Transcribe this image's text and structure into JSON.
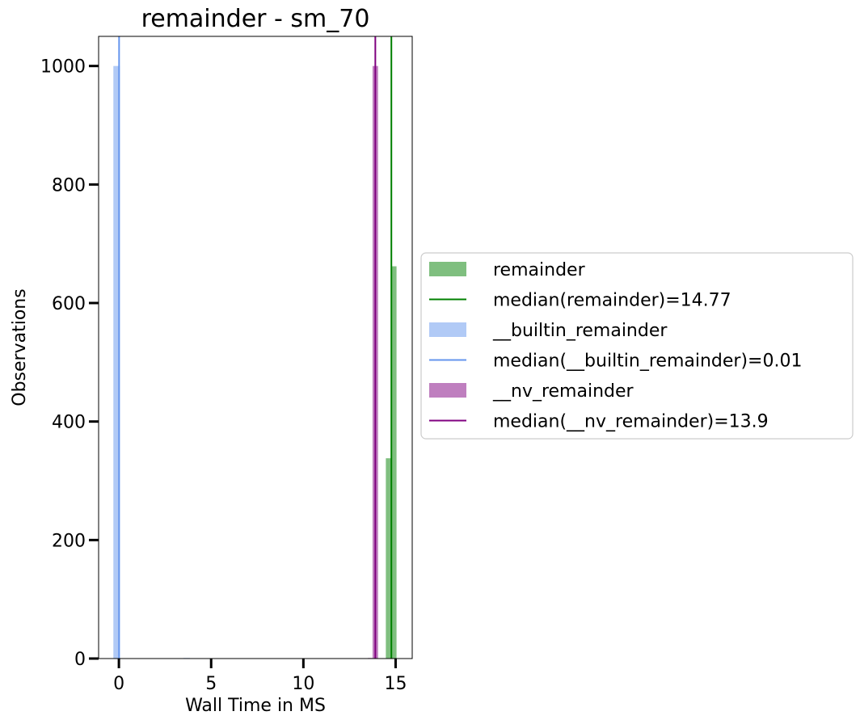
{
  "chart_data": {
    "type": "bar",
    "title": "remainder - sm_70",
    "xlabel": "Wall Time in MS",
    "ylabel": "Observations",
    "xlim": [
      -1.1,
      15.9
    ],
    "ylim": [
      0,
      1050
    ],
    "xticks": [
      0,
      5,
      10,
      15
    ],
    "yticks": [
      0,
      200,
      400,
      600,
      800,
      1000
    ],
    "grid": false,
    "legend_position": "outside-right",
    "series": [
      {
        "name": "remainder",
        "kind": "histogram",
        "color": "#008000",
        "opacity": 0.5,
        "bins": [
          {
            "x0": 14.47,
            "x1": 14.77,
            "count": 338
          },
          {
            "x0": 14.77,
            "x1": 15.05,
            "count": 662
          }
        ]
      },
      {
        "name": "median(remainder)=14.77",
        "kind": "vline",
        "color": "#008000",
        "x": 14.77
      },
      {
        "name": "__builtin_remainder",
        "kind": "histogram",
        "color": "#6495ED",
        "opacity": 0.5,
        "bins": [
          {
            "x0": -0.3,
            "x1": 0.05,
            "count": 1000
          },
          {
            "x0": 3.5,
            "x1": 3.85,
            "count": 1
          }
        ]
      },
      {
        "name": "median(__builtin_remainder)=0.01",
        "kind": "vline",
        "color": "#6495ED",
        "x": 0.01
      },
      {
        "name": "__nv_remainder",
        "kind": "histogram",
        "color": "#800080",
        "opacity": 0.5,
        "bins": [
          {
            "x0": 13.5,
            "x1": 13.75,
            "count": 1
          },
          {
            "x0": 13.75,
            "x1": 14.05,
            "count": 1000
          }
        ]
      },
      {
        "name": "median(__nv_remainder)=13.9",
        "kind": "vline",
        "color": "#800080",
        "x": 13.9
      }
    ]
  }
}
